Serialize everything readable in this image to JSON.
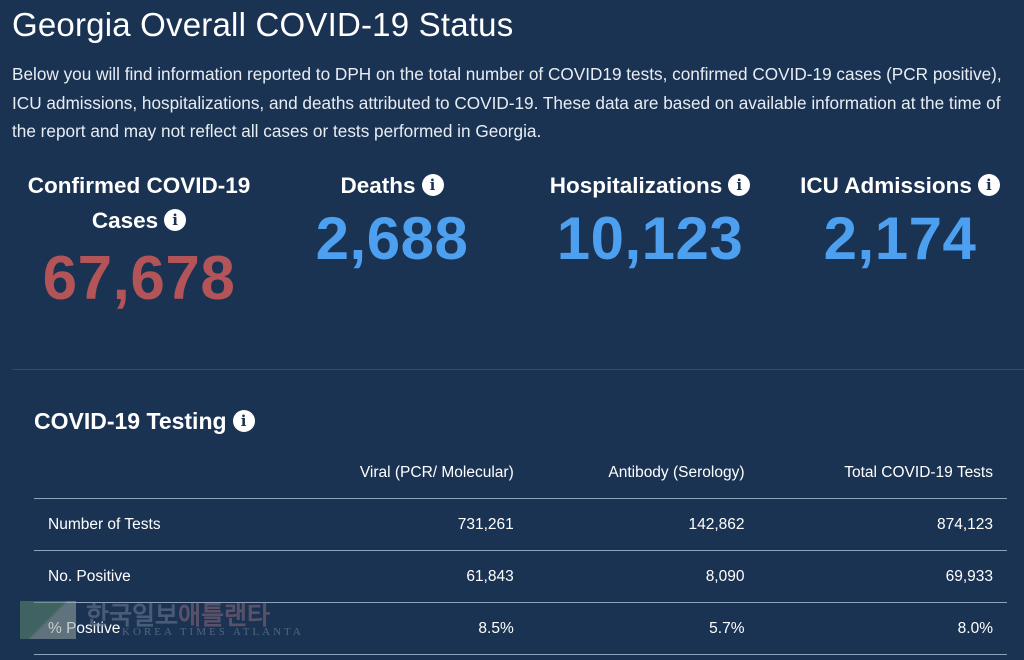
{
  "header": {
    "title": "Georgia Overall COVID-19 Status",
    "description": "Below you will find information reported to DPH on the total number of COVID19 tests, confirmed COVID-19 cases (PCR positive), ICU admissions, hospitalizations, and deaths attributed to COVID-19. These data are based on available information at the time of the report and may not reflect all cases or tests performed in Georgia."
  },
  "stats": {
    "cases": {
      "label_line1": "Confirmed COVID-19",
      "label_line2": "Cases",
      "value": "67,678"
    },
    "deaths": {
      "label": "Deaths",
      "value": "2,688"
    },
    "hospitalizations": {
      "label": "Hospitalizations",
      "value": "10,123"
    },
    "icu": {
      "label": "ICU Admissions",
      "value": "2,174"
    }
  },
  "info_icon_glyph": "i",
  "testing": {
    "title": "COVID-19 Testing",
    "columns": [
      "",
      "Viral (PCR/ Molecular)",
      "Antibody (Serology)",
      "Total COVID-19 Tests"
    ],
    "rows": [
      {
        "label": "Number of Tests",
        "viral": "731,261",
        "antibody": "142,862",
        "total": "874,123"
      },
      {
        "label": "No. Positive",
        "viral": "61,843",
        "antibody": "8,090",
        "total": "69,933"
      },
      {
        "label": "% Positive",
        "viral": "8.5%",
        "antibody": "5.7%",
        "total": "8.0%"
      }
    ]
  },
  "watermark": {
    "korean_part1": "한국일보",
    "korean_part2": "애틀랜타",
    "english": "KOREA TIMES ATLANTA"
  },
  "colors": {
    "background": "#1b3353",
    "cases_red": "#b35458",
    "stat_blue": "#4da0f0",
    "divider": "#2f4a6c"
  }
}
